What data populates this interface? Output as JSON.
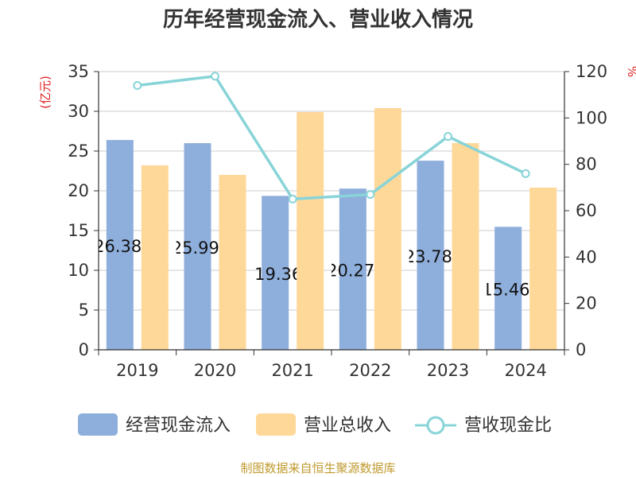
{
  "chart_data": {
    "type": "bar",
    "title": "历年经营现金流入、营业收入情况",
    "categories": [
      "2019",
      "2020",
      "2021",
      "2022",
      "2023",
      "2024"
    ],
    "y_left": {
      "unit": "(亿元)",
      "lim": [
        0,
        35
      ],
      "ticks": [
        0,
        5,
        10,
        15,
        20,
        25,
        30,
        35
      ]
    },
    "y_right": {
      "unit": "%",
      "lim": [
        0,
        120
      ],
      "ticks": [
        0,
        20,
        40,
        60,
        80,
        100,
        120
      ]
    },
    "grid": true,
    "legend_position": "bottom",
    "series": [
      {
        "name": "经营现金流入",
        "type": "bar",
        "axis": "left",
        "color": "#8eaedc",
        "values": [
          26.389,
          25.992,
          19.36,
          20.277,
          23.787,
          15.469
        ],
        "labels": [
          "26.389",
          "25.992",
          "19.36",
          "20.277",
          "23.787",
          "15.469"
        ]
      },
      {
        "name": "营业总收入",
        "type": "bar",
        "axis": "left",
        "color": "#fed898",
        "values": [
          23.2,
          22.0,
          29.9,
          30.4,
          26.0,
          20.4
        ]
      },
      {
        "name": "营收现金比",
        "type": "line",
        "axis": "right",
        "color": "#88d4d8",
        "values": [
          114,
          118,
          65,
          67,
          92,
          76
        ]
      }
    ]
  },
  "footer": {
    "source": "制图数据来自恒生聚源数据库"
  }
}
